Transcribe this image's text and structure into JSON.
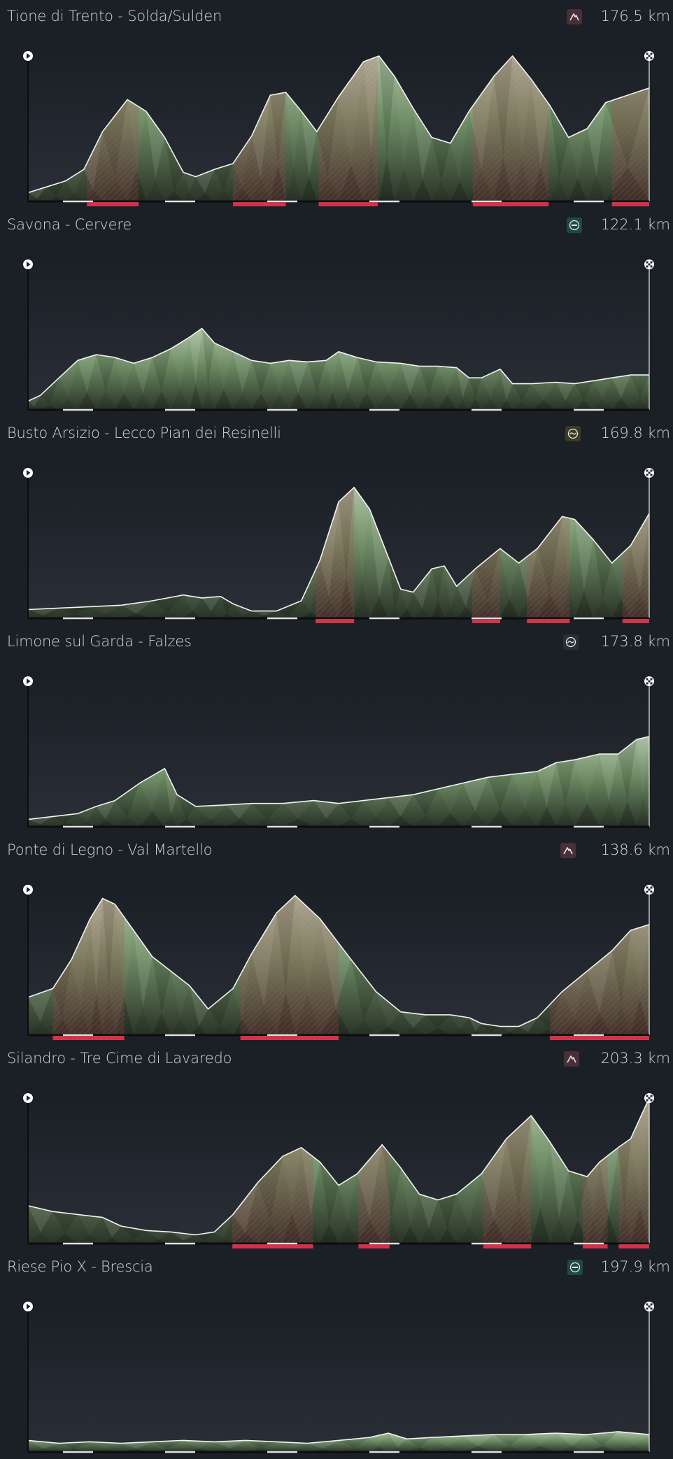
{
  "stages": [
    {
      "title": "Tione di Trento - Solda/Sulden",
      "distance": "176.5 km",
      "type_icon": "mountain-icon",
      "icon_bg": "#4a2e38",
      "icon_fg": "#e7e7e7",
      "icon_x": 810,
      "profile": [
        [
          0,
          0.06
        ],
        [
          0.03,
          0.1
        ],
        [
          0.06,
          0.14
        ],
        [
          0.09,
          0.22
        ],
        [
          0.12,
          0.48
        ],
        [
          0.16,
          0.7
        ],
        [
          0.19,
          0.62
        ],
        [
          0.22,
          0.44
        ],
        [
          0.25,
          0.2
        ],
        [
          0.27,
          0.17
        ],
        [
          0.3,
          0.22
        ],
        [
          0.33,
          0.26
        ],
        [
          0.36,
          0.45
        ],
        [
          0.39,
          0.73
        ],
        [
          0.415,
          0.75
        ],
        [
          0.44,
          0.62
        ],
        [
          0.465,
          0.48
        ],
        [
          0.5,
          0.72
        ],
        [
          0.54,
          0.96
        ],
        [
          0.565,
          1.0
        ],
        [
          0.59,
          0.86
        ],
        [
          0.62,
          0.64
        ],
        [
          0.65,
          0.44
        ],
        [
          0.68,
          0.4
        ],
        [
          0.71,
          0.62
        ],
        [
          0.75,
          0.86
        ],
        [
          0.78,
          1.0
        ],
        [
          0.81,
          0.84
        ],
        [
          0.84,
          0.66
        ],
        [
          0.87,
          0.44
        ],
        [
          0.9,
          0.5
        ],
        [
          0.93,
          0.68
        ],
        [
          1.0,
          0.78
        ]
      ],
      "climbs": [
        [
          0.095,
          0.178
        ],
        [
          0.33,
          0.415
        ],
        [
          0.468,
          0.563
        ],
        [
          0.716,
          0.838
        ],
        [
          0.94,
          1.0
        ]
      ]
    },
    {
      "title": "Savona - Cervere",
      "distance": "122.1 km",
      "type_icon": "flat-icon",
      "icon_bg": "#1e4a45",
      "icon_fg": "#e7e7e7",
      "icon_x": 810,
      "profile": [
        [
          0,
          0.06
        ],
        [
          0.02,
          0.1
        ],
        [
          0.05,
          0.22
        ],
        [
          0.08,
          0.34
        ],
        [
          0.11,
          0.38
        ],
        [
          0.14,
          0.36
        ],
        [
          0.17,
          0.32
        ],
        [
          0.2,
          0.36
        ],
        [
          0.23,
          0.42
        ],
        [
          0.26,
          0.5
        ],
        [
          0.28,
          0.56
        ],
        [
          0.3,
          0.46
        ],
        [
          0.33,
          0.4
        ],
        [
          0.36,
          0.34
        ],
        [
          0.39,
          0.32
        ],
        [
          0.42,
          0.34
        ],
        [
          0.45,
          0.33
        ],
        [
          0.48,
          0.34
        ],
        [
          0.5,
          0.4
        ],
        [
          0.53,
          0.36
        ],
        [
          0.56,
          0.33
        ],
        [
          0.6,
          0.32
        ],
        [
          0.63,
          0.3
        ],
        [
          0.66,
          0.3
        ],
        [
          0.69,
          0.29
        ],
        [
          0.71,
          0.22
        ],
        [
          0.73,
          0.22
        ],
        [
          0.76,
          0.28
        ],
        [
          0.78,
          0.18
        ],
        [
          0.81,
          0.18
        ],
        [
          0.85,
          0.19
        ],
        [
          0.88,
          0.18
        ],
        [
          0.91,
          0.2
        ],
        [
          0.94,
          0.22
        ],
        [
          0.97,
          0.24
        ],
        [
          1.0,
          0.24
        ]
      ],
      "climbs": []
    },
    {
      "title": "Busto Arsizio - Lecco Pian dei Resinelli",
      "distance": "169.8 km",
      "type_icon": "hilly-icon",
      "icon_bg": "#3d3a25",
      "icon_fg": "#e7e7e7",
      "icon_x": 808,
      "profile": [
        [
          0,
          0.06
        ],
        [
          0.05,
          0.07
        ],
        [
          0.1,
          0.08
        ],
        [
          0.15,
          0.09
        ],
        [
          0.2,
          0.12
        ],
        [
          0.25,
          0.16
        ],
        [
          0.28,
          0.14
        ],
        [
          0.31,
          0.15
        ],
        [
          0.33,
          0.1
        ],
        [
          0.36,
          0.05
        ],
        [
          0.4,
          0.05
        ],
        [
          0.44,
          0.12
        ],
        [
          0.47,
          0.4
        ],
        [
          0.5,
          0.8
        ],
        [
          0.525,
          0.9
        ],
        [
          0.55,
          0.75
        ],
        [
          0.58,
          0.42
        ],
        [
          0.6,
          0.2
        ],
        [
          0.62,
          0.18
        ],
        [
          0.65,
          0.34
        ],
        [
          0.67,
          0.36
        ],
        [
          0.69,
          0.22
        ],
        [
          0.72,
          0.34
        ],
        [
          0.76,
          0.48
        ],
        [
          0.79,
          0.38
        ],
        [
          0.82,
          0.48
        ],
        [
          0.86,
          0.7
        ],
        [
          0.88,
          0.68
        ],
        [
          0.91,
          0.54
        ],
        [
          0.94,
          0.38
        ],
        [
          0.97,
          0.5
        ],
        [
          1.0,
          0.72
        ]
      ],
      "climbs": [
        [
          0.463,
          0.525
        ],
        [
          0.715,
          0.76
        ],
        [
          0.803,
          0.872
        ],
        [
          0.957,
          1.0
        ]
      ]
    },
    {
      "title": "Limone sul Garda - Falzes",
      "distance": "173.8 km",
      "type_icon": "hilly-icon",
      "icon_bg": "#2a2e35",
      "icon_fg": "#e7e7e7",
      "icon_x": 805,
      "profile": [
        [
          0,
          0.05
        ],
        [
          0.04,
          0.07
        ],
        [
          0.08,
          0.09
        ],
        [
          0.11,
          0.14
        ],
        [
          0.14,
          0.18
        ],
        [
          0.18,
          0.3
        ],
        [
          0.22,
          0.4
        ],
        [
          0.24,
          0.22
        ],
        [
          0.27,
          0.14
        ],
        [
          0.32,
          0.15
        ],
        [
          0.36,
          0.16
        ],
        [
          0.41,
          0.16
        ],
        [
          0.46,
          0.18
        ],
        [
          0.5,
          0.16
        ],
        [
          0.54,
          0.18
        ],
        [
          0.58,
          0.2
        ],
        [
          0.62,
          0.22
        ],
        [
          0.66,
          0.26
        ],
        [
          0.7,
          0.3
        ],
        [
          0.74,
          0.34
        ],
        [
          0.78,
          0.36
        ],
        [
          0.82,
          0.38
        ],
        [
          0.85,
          0.44
        ],
        [
          0.88,
          0.46
        ],
        [
          0.92,
          0.5
        ],
        [
          0.95,
          0.5
        ],
        [
          0.98,
          0.6
        ],
        [
          1.0,
          0.62
        ]
      ],
      "climbs": []
    },
    {
      "title": "Ponte di Legno - Val Martello",
      "distance": "138.6 km",
      "type_icon": "mountain-icon",
      "icon_bg": "#4a2e38",
      "icon_fg": "#e7e7e7",
      "icon_x": 801,
      "profile": [
        [
          0,
          0.26
        ],
        [
          0.04,
          0.32
        ],
        [
          0.07,
          0.52
        ],
        [
          0.1,
          0.8
        ],
        [
          0.12,
          0.94
        ],
        [
          0.14,
          0.9
        ],
        [
          0.17,
          0.72
        ],
        [
          0.2,
          0.54
        ],
        [
          0.23,
          0.44
        ],
        [
          0.26,
          0.34
        ],
        [
          0.29,
          0.18
        ],
        [
          0.33,
          0.32
        ],
        [
          0.36,
          0.56
        ],
        [
          0.4,
          0.84
        ],
        [
          0.43,
          0.96
        ],
        [
          0.47,
          0.8
        ],
        [
          0.52,
          0.52
        ],
        [
          0.56,
          0.3
        ],
        [
          0.6,
          0.16
        ],
        [
          0.64,
          0.14
        ],
        [
          0.68,
          0.14
        ],
        [
          0.71,
          0.12
        ],
        [
          0.73,
          0.08
        ],
        [
          0.76,
          0.06
        ],
        [
          0.79,
          0.06
        ],
        [
          0.82,
          0.12
        ],
        [
          0.86,
          0.3
        ],
        [
          0.9,
          0.44
        ],
        [
          0.94,
          0.58
        ],
        [
          0.97,
          0.72
        ],
        [
          1.0,
          0.76
        ]
      ],
      "climbs": [
        [
          0.04,
          0.155
        ],
        [
          0.342,
          0.5
        ],
        [
          0.84,
          1.0
        ]
      ]
    },
    {
      "title": "Silandro - Tre Cime di Lavaredo",
      "distance": "203.3 km",
      "type_icon": "mountain-icon",
      "icon_bg": "#4a2e38",
      "icon_fg": "#e7e7e7",
      "icon_x": 806,
      "profile": [
        [
          0,
          0.26
        ],
        [
          0.04,
          0.22
        ],
        [
          0.08,
          0.2
        ],
        [
          0.12,
          0.18
        ],
        [
          0.15,
          0.12
        ],
        [
          0.19,
          0.09
        ],
        [
          0.23,
          0.08
        ],
        [
          0.27,
          0.06
        ],
        [
          0.3,
          0.08
        ],
        [
          0.33,
          0.2
        ],
        [
          0.37,
          0.42
        ],
        [
          0.41,
          0.6
        ],
        [
          0.44,
          0.66
        ],
        [
          0.47,
          0.56
        ],
        [
          0.5,
          0.4
        ],
        [
          0.53,
          0.48
        ],
        [
          0.57,
          0.68
        ],
        [
          0.6,
          0.52
        ],
        [
          0.63,
          0.34
        ],
        [
          0.66,
          0.3
        ],
        [
          0.69,
          0.34
        ],
        [
          0.73,
          0.48
        ],
        [
          0.77,
          0.72
        ],
        [
          0.81,
          0.88
        ],
        [
          0.84,
          0.7
        ],
        [
          0.87,
          0.5
        ],
        [
          0.9,
          0.46
        ],
        [
          0.92,
          0.56
        ],
        [
          0.95,
          0.66
        ],
        [
          0.97,
          0.72
        ],
        [
          1.0,
          1.0
        ]
      ],
      "climbs": [
        [
          0.329,
          0.459
        ],
        [
          0.532,
          0.582
        ],
        [
          0.733,
          0.81
        ],
        [
          0.893,
          0.933
        ],
        [
          0.951,
          1.0
        ]
      ]
    },
    {
      "title": "Riese Pio X - Brescia",
      "distance": "197.9 km",
      "type_icon": "flat-icon",
      "icon_bg": "#1e4a45",
      "icon_fg": "#e7e7e7",
      "icon_x": 811,
      "profile": [
        [
          0,
          0.08
        ],
        [
          0.05,
          0.06
        ],
        [
          0.1,
          0.07
        ],
        [
          0.15,
          0.06
        ],
        [
          0.2,
          0.07
        ],
        [
          0.25,
          0.08
        ],
        [
          0.3,
          0.07
        ],
        [
          0.35,
          0.08
        ],
        [
          0.4,
          0.07
        ],
        [
          0.45,
          0.06
        ],
        [
          0.5,
          0.08
        ],
        [
          0.55,
          0.1
        ],
        [
          0.58,
          0.13
        ],
        [
          0.61,
          0.09
        ],
        [
          0.65,
          0.1
        ],
        [
          0.7,
          0.11
        ],
        [
          0.75,
          0.12
        ],
        [
          0.8,
          0.12
        ],
        [
          0.85,
          0.13
        ],
        [
          0.9,
          0.12
        ],
        [
          0.95,
          0.14
        ],
        [
          1.0,
          0.12
        ]
      ],
      "climbs": []
    }
  ]
}
